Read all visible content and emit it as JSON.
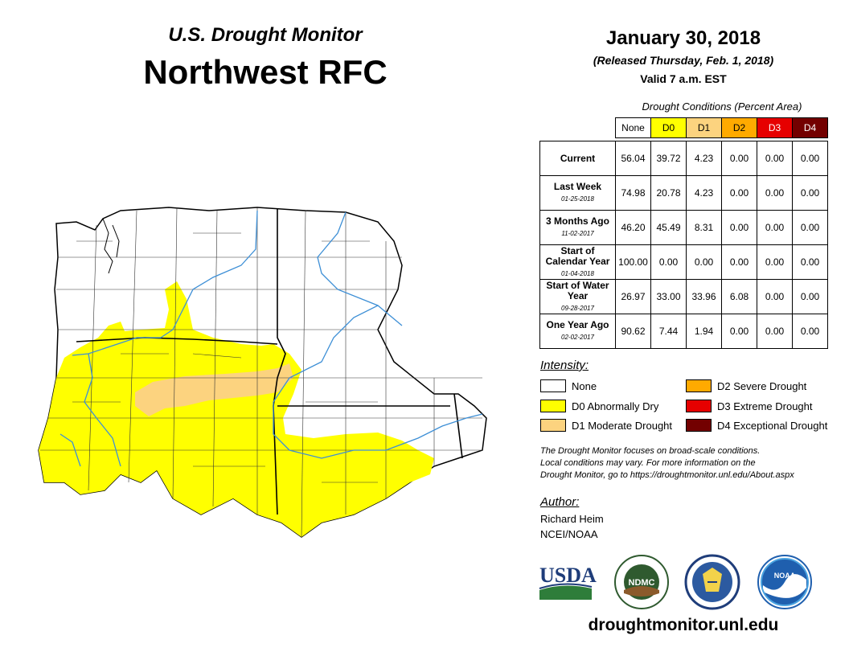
{
  "header": {
    "subtitle": "U.S. Drought Monitor",
    "title": "Northwest RFC",
    "date": "January 30, 2018",
    "released": "(Released Thursday, Feb. 1, 2018)",
    "valid": "Valid 7 a.m. EST"
  },
  "table": {
    "caption": "Drought Conditions (Percent Area)",
    "columns": [
      "None",
      "D0",
      "D1",
      "D2",
      "D3",
      "D4"
    ],
    "column_colors": [
      "#ffffff",
      "#ffff00",
      "#fcd37f",
      "#ffaa00",
      "#e60000",
      "#730000"
    ],
    "rows": [
      {
        "label": "Current",
        "date": "",
        "values": [
          "56.04",
          "39.72",
          "4.23",
          "0.00",
          "0.00",
          "0.00"
        ]
      },
      {
        "label": "Last Week",
        "date": "01-25-2018",
        "values": [
          "74.98",
          "20.78",
          "4.23",
          "0.00",
          "0.00",
          "0.00"
        ]
      },
      {
        "label": "3 Months Ago",
        "date": "11-02-2017",
        "values": [
          "46.20",
          "45.49",
          "8.31",
          "0.00",
          "0.00",
          "0.00"
        ]
      },
      {
        "label": "Start of Calendar Year",
        "date": "01-04-2018",
        "values": [
          "100.00",
          "0.00",
          "0.00",
          "0.00",
          "0.00",
          "0.00"
        ]
      },
      {
        "label": "Start of Water Year",
        "date": "09-28-2017",
        "values": [
          "26.97",
          "33.00",
          "33.96",
          "6.08",
          "0.00",
          "0.00"
        ]
      },
      {
        "label": "One Year Ago",
        "date": "02-02-2017",
        "values": [
          "90.62",
          "7.44",
          "1.94",
          "0.00",
          "0.00",
          "0.00"
        ]
      }
    ]
  },
  "legend": {
    "title": "Intensity:",
    "items": [
      {
        "label": "None",
        "color": "#ffffff"
      },
      {
        "label": "D0 Abnormally Dry",
        "color": "#ffff00"
      },
      {
        "label": "D1 Moderate Drought",
        "color": "#fcd37f"
      },
      {
        "label": "D2 Severe Drought",
        "color": "#ffaa00"
      },
      {
        "label": "D3 Extreme Drought",
        "color": "#e60000"
      },
      {
        "label": "D4 Exceptional Drought",
        "color": "#730000"
      }
    ]
  },
  "note": {
    "line1": "The Drought Monitor focuses on broad-scale conditions.",
    "line2": "Local conditions may vary. For more information on the",
    "line3": "Drought Monitor, go to https://droughtmonitor.unl.edu/About.aspx"
  },
  "author": {
    "title": "Author:",
    "name": "Richard Heim",
    "org": "NCEI/NOAA"
  },
  "logos": {
    "usda": "USDA",
    "ndmc": "NDMC",
    "noaa": "NOAA"
  },
  "footer": {
    "url": "droughtmonitor.unl.edu"
  },
  "map": {
    "region": "Northwest RFC",
    "dominant_category": "D0",
    "colors": {
      "none": "#ffffff",
      "d0": "#ffff00",
      "d1": "#fcd37f",
      "river": "#3d8fd6",
      "border": "#000000"
    }
  }
}
